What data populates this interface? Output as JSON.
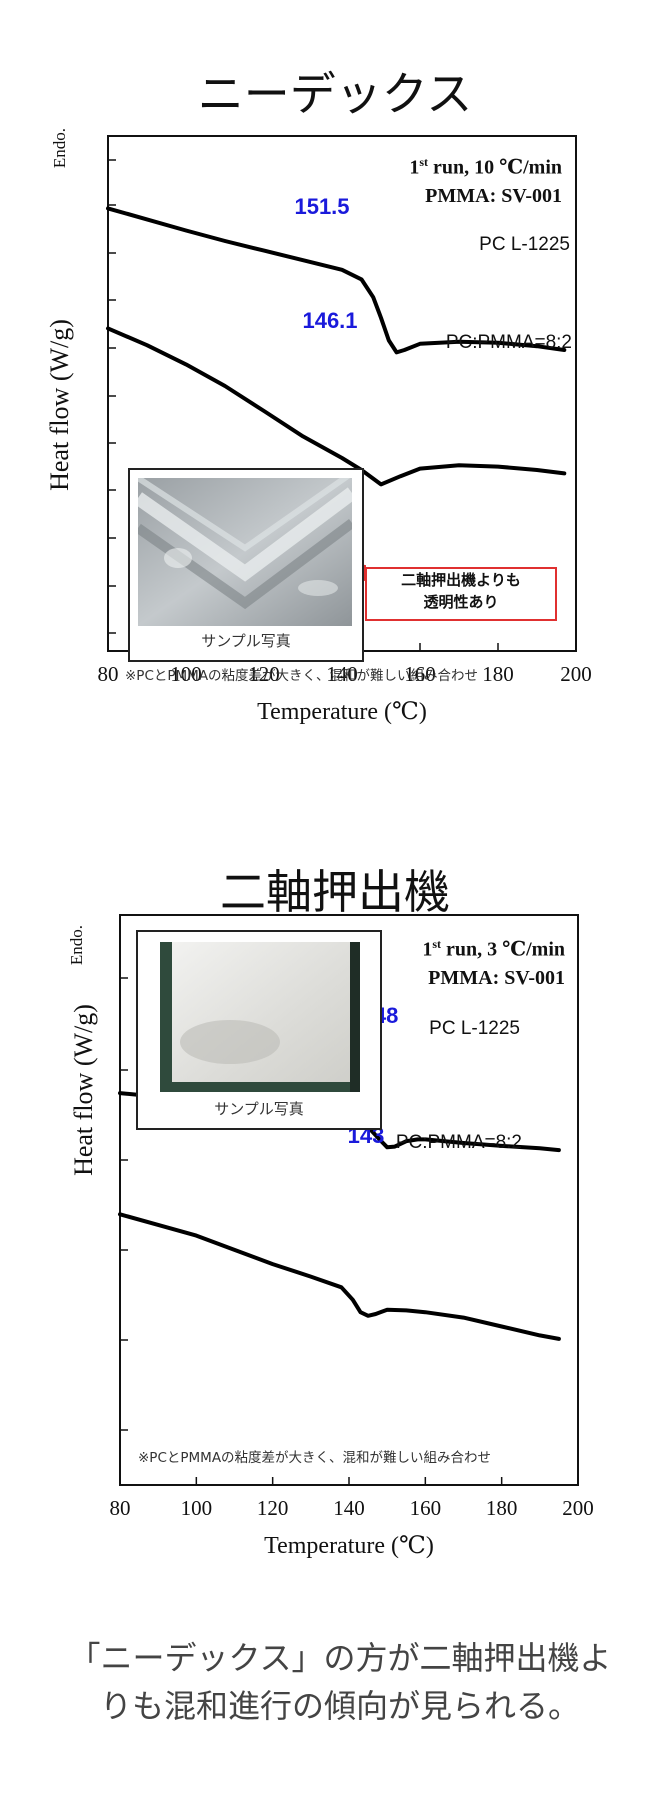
{
  "chart_data": [
    {
      "type": "line",
      "title": "ニーデックス",
      "xlabel": "Temperature (℃)",
      "ylabel": "Heat flow (W/g)",
      "endo_label": "Endo.",
      "run_info": {
        "line1_pre": "1",
        "line1_sup": "st",
        "line1_post": " run, 10 ℃/min",
        "line2": "PMMA: SV-001"
      },
      "xlim": [
        80,
        200
      ],
      "xticks": [
        "80",
        "100",
        "120",
        "140",
        "160",
        "180",
        "200"
      ],
      "series": [
        {
          "name": "PC L-1225",
          "peak": "151.5",
          "x": [
            80,
            90,
            100,
            110,
            120,
            130,
            140,
            145,
            148,
            150,
            152,
            154,
            156,
            160,
            170,
            180,
            190,
            197
          ],
          "y": [
            9.2,
            8.97,
            8.74,
            8.52,
            8.32,
            8.12,
            7.92,
            7.72,
            7.35,
            6.92,
            6.45,
            6.2,
            6.25,
            6.38,
            6.42,
            6.4,
            6.33,
            6.25
          ]
        },
        {
          "name": "PC:PMMA=8:2",
          "peak": "146.1",
          "x": [
            80,
            90,
            100,
            110,
            120,
            130,
            140,
            145,
            150,
            155,
            160,
            170,
            180,
            190,
            197
          ],
          "y": [
            6.7,
            6.35,
            5.95,
            5.5,
            4.98,
            4.45,
            4.0,
            3.75,
            3.45,
            3.62,
            3.78,
            3.85,
            3.82,
            3.75,
            3.68
          ]
        }
      ]
    },
    {
      "type": "line",
      "title": "二軸押出機",
      "xlabel": "Temperature (℃)",
      "ylabel": "Heat flow (W/g)",
      "endo_label": "Endo.",
      "run_info": {
        "line1_pre": "1",
        "line1_sup": "st",
        "line1_post": " run, 3 ℃/min",
        "line2": "PMMA: SV-001"
      },
      "xlim": [
        80,
        200
      ],
      "xticks": [
        "80",
        "100",
        "120",
        "140",
        "160",
        "180",
        "200"
      ],
      "series": [
        {
          "name": "PC L-1225",
          "peak": "148",
          "x": [
            80,
            90,
            100,
            110,
            120,
            130,
            140,
            145,
            148,
            150,
            152,
            155,
            158,
            160,
            170,
            180,
            190,
            195
          ],
          "y": [
            7.0,
            6.9,
            6.8,
            6.7,
            6.58,
            6.45,
            6.28,
            6.05,
            5.7,
            5.48,
            5.5,
            5.65,
            5.7,
            5.7,
            5.6,
            5.52,
            5.45,
            5.4
          ]
        },
        {
          "name": "PC:PMMA=8:2",
          "peak": "143",
          "x": [
            80,
            90,
            100,
            110,
            120,
            130,
            138,
            141,
            143,
            145,
            147,
            150,
            155,
            160,
            170,
            180,
            190,
            195
          ],
          "y": [
            3.6,
            3.3,
            3.0,
            2.6,
            2.2,
            1.85,
            1.55,
            1.2,
            0.85,
            0.75,
            0.8,
            0.92,
            0.9,
            0.85,
            0.7,
            0.45,
            0.2,
            0.1
          ]
        }
      ]
    }
  ],
  "panel1": {
    "photo_caption": "サンプル写真",
    "callout_line1": "二軸押出機よりも",
    "callout_line2": "透明性あり",
    "note": "※PCとPMMAの粘度差が大きく、混和が難しい組み合わせ"
  },
  "panel2": {
    "photo_caption": "サンプル写真",
    "note": "※PCとPMMAの粘度差が大きく、混和が難しい組み合わせ"
  },
  "conclusion": {
    "line1": "「ニーデックス」の方が二軸押出機よ",
    "line2": "りも混和進行の傾向が見られる。"
  },
  "colors": {
    "peak_label": "#1a1adb",
    "curve": "#000000",
    "callout_border": "#e03030"
  }
}
